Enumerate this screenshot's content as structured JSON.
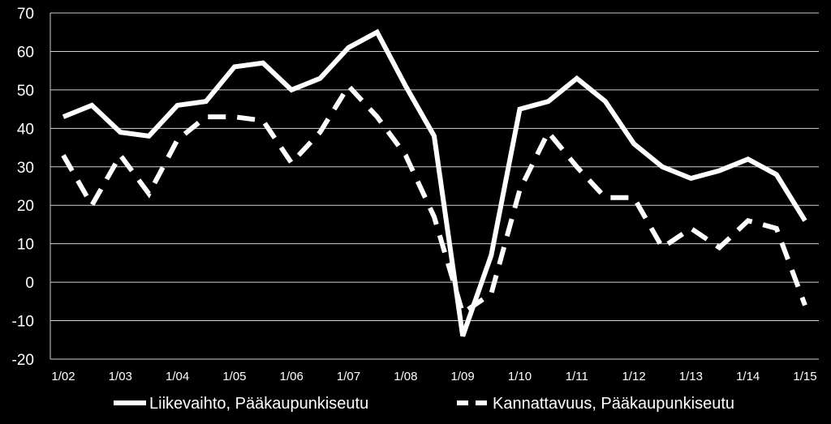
{
  "chart_data": {
    "type": "line",
    "ylim": [
      -20,
      70
    ],
    "yticks": [
      70,
      60,
      50,
      40,
      30,
      20,
      10,
      0,
      -10,
      -20
    ],
    "grid": true,
    "x_labels": [
      "1/02",
      "1/03",
      "1/04",
      "1/05",
      "1/06",
      "1/07",
      "1/08",
      "1/09",
      "1/10",
      "1/11",
      "1/12",
      "1/13",
      "1/14",
      "1/15"
    ],
    "series": [
      {
        "name": "Liikevaihto, Pääkaupunkiseutu",
        "style": "solid",
        "color": "#ffffff",
        "values": [
          43,
          46,
          39,
          38,
          46,
          47,
          56,
          57,
          50,
          53,
          61,
          65,
          51,
          38,
          -14,
          7,
          45,
          47,
          53,
          47,
          36,
          30,
          27,
          29,
          32,
          28,
          16
        ]
      },
      {
        "name": "Kannattavuus, Pääkaupunkiseutu",
        "style": "dashed",
        "color": "#ffffff",
        "values": [
          33,
          20,
          33,
          23,
          37,
          43,
          43,
          42,
          31,
          39,
          51,
          43,
          33,
          17,
          -8,
          -3,
          24,
          39,
          30,
          22,
          22,
          9,
          14,
          9,
          16,
          14,
          -6
        ]
      }
    ],
    "legend_position": "bottom"
  }
}
